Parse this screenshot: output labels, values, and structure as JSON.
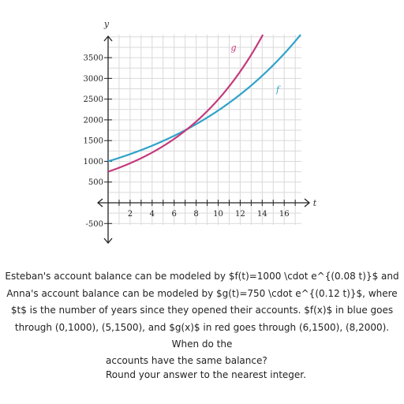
{
  "chart_data": {
    "type": "line",
    "xlabel": "t",
    "ylabel": "y",
    "xlim": [
      -1,
      18
    ],
    "ylim": [
      -700,
      4200
    ],
    "x_ticks": [
      2,
      4,
      6,
      8,
      10,
      12,
      14,
      16
    ],
    "y_ticks": [
      -500,
      500,
      1000,
      1500,
      2000,
      2500,
      3000,
      3500
    ],
    "grid": true,
    "series": [
      {
        "name": "f",
        "color": "#2fa3c9",
        "a": 1000,
        "k": 0.08,
        "x": [
          0,
          5
        ],
        "y": [
          1000,
          1500
        ]
      },
      {
        "name": "g",
        "color": "#c53a7c",
        "a": 750,
        "k": 0.12,
        "x": [
          6,
          8
        ],
        "y": [
          1500,
          2000
        ]
      }
    ]
  },
  "problem": {
    "text": "Esteban's account balance can be modeled by $f(t)=1000 \\cdot e^{(0.08 t)}$ and Anna's account balance can be modeled by $g(t)=750 \\cdot e^{(0.12 t)}$, where $t$ is the number of years since they opened their accounts. $f(x)$ in blue goes through (0,1000), (5,1500), and $g(x)$ in red goes through (6,1500), (8,2000). When do the",
    "question": "accounts have the same balance?",
    "instruction": "Round your answer to the nearest integer."
  }
}
